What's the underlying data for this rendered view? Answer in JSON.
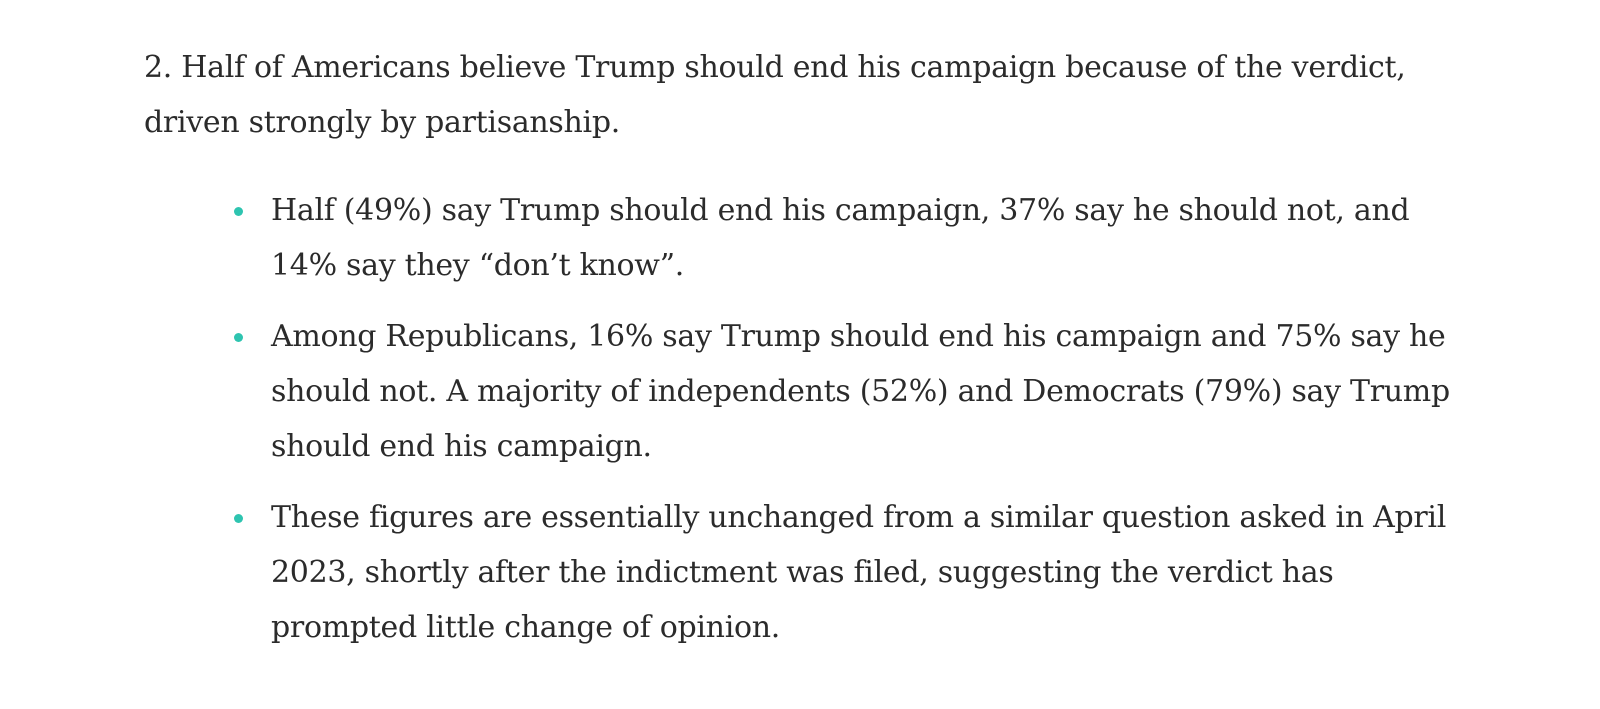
{
  "lead_paragraph": "2. Half of Americans believe Trump should end his campaign because of the verdict, driven strongly by partisanship.",
  "bullets": [
    "Half (49%) say Trump should end his campaign, 37% say he should not, and 14% say they “don’t know”.",
    "Among Republicans, 16% say Trump should end his campaign and 75% say he should not. A majority of independents (52%) and Democrats (79%) say Trump should end his campaign.",
    "These figures are essentially unchanged from a similar question asked in April 2023, shortly after the indictment was filed, suggesting the verdict has prompted little change of opinion."
  ],
  "colors": {
    "text": "#2b2b2b",
    "bullet_dot": "#2ec4b0",
    "background": "#ffffff"
  }
}
